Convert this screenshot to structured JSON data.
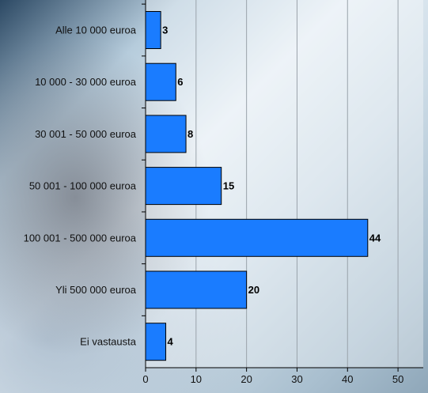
{
  "chart_data": {
    "type": "bar",
    "orientation": "horizontal",
    "categories": [
      "Alle 10 000 euroa",
      "10 000 - 30 000 euroa",
      "30 001 - 50 000 euroa",
      "50 001 - 100 000 euroa",
      "100 001 - 500 000 euroa",
      "Yli 500 000 euroa",
      "Ei vastausta"
    ],
    "values": [
      3,
      6,
      8,
      15,
      44,
      20,
      4
    ],
    "xlim": [
      0,
      55
    ],
    "xticks": [
      0,
      10,
      20,
      30,
      40,
      50
    ],
    "grid": true,
    "bar_color": "#1a7cff",
    "bar_edge_color": "#000000",
    "title": "",
    "xlabel": "",
    "ylabel": ""
  }
}
